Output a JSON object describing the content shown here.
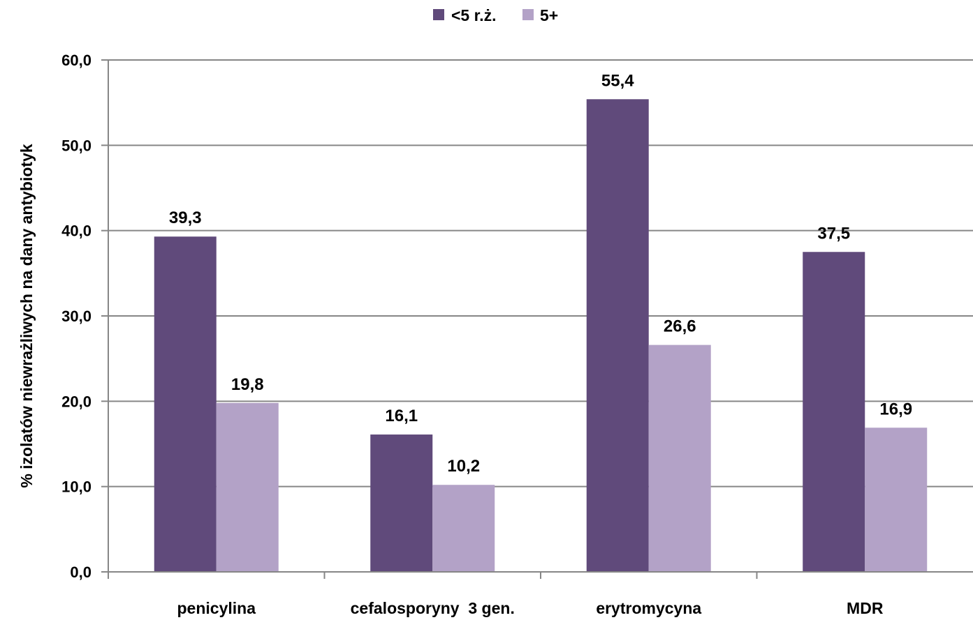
{
  "chart_data": {
    "type": "bar",
    "categories": [
      "penicylina",
      "cefalosporyny  3 gen.",
      "erytromycyna",
      "MDR"
    ],
    "series": [
      {
        "name": "<5 r.ż.",
        "values": [
          39.3,
          16.1,
          55.4,
          37.5
        ],
        "color": "#604a7b"
      },
      {
        "name": "5+",
        "values": [
          19.8,
          10.2,
          26.6,
          16.9
        ],
        "color": "#b3a2c7"
      }
    ],
    "data_labels": [
      [
        "39,3",
        "16,1",
        "55,4",
        "37,5"
      ],
      [
        "19,8",
        "10,2",
        "26,6",
        "16,9"
      ]
    ],
    "title": "",
    "xlabel": "",
    "ylabel": "% izolatów niewrażliwych  na dany antybiotyk",
    "ylim": [
      0,
      60
    ],
    "yticks": [
      0,
      10,
      20,
      30,
      40,
      50,
      60
    ],
    "ytick_labels": [
      "0,0",
      "10,0",
      "20,0",
      "30,0",
      "40,0",
      "50,0",
      "60,0"
    ],
    "grid": true,
    "grid_color": "#868686",
    "legend_position": "top"
  }
}
